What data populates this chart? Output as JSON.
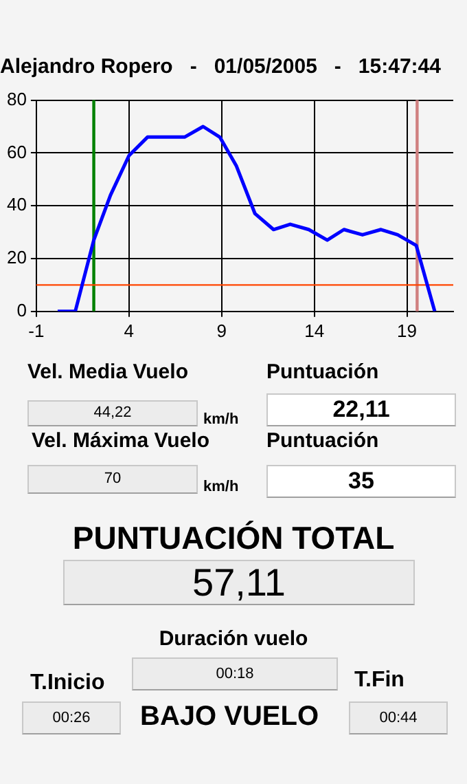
{
  "chart_data": [
    {
      "type": "line",
      "title": "Alejandro Ropero   -   01/05/2005   -   15:47:44",
      "x": [
        0.15,
        1.1,
        2.1,
        3,
        4,
        5,
        6,
        7,
        8,
        8.9,
        9.8,
        10.8,
        11.8,
        12.7,
        13.7,
        14.7,
        15.6,
        16.6,
        17.6,
        18.5,
        19.5,
        20.5
      ],
      "series": [
        {
          "color": "#0000ff",
          "values": [
            0,
            0,
            27,
            44,
            59,
            66,
            66,
            66,
            70,
            66,
            55,
            37,
            31,
            33,
            31,
            27,
            31,
            29,
            31,
            29,
            25,
            0
          ]
        }
      ],
      "xlim": [
        -1,
        21.5
      ],
      "xticks": [
        -1,
        4,
        9,
        14,
        19
      ],
      "ylim": [
        0,
        80
      ],
      "yticks": [
        0,
        20,
        40,
        60,
        80
      ],
      "ref_lines": [
        {
          "axis": "x",
          "value": 2.1,
          "color": "#008000"
        },
        {
          "axis": "x",
          "value": 19.55,
          "color": "#d08080"
        },
        {
          "axis": "y",
          "value": 10,
          "color": "#ff4500"
        }
      ],
      "grid": true,
      "legend": false,
      "marker": "none",
      "line_style": "solid"
    },
    {
      "type": "other",
      "annotations": [
        "Vel. Media Vuelo",
        "44,22",
        "km/h",
        "Puntuación",
        "22,11",
        "Vel. Máxima Vuelo",
        "70",
        "km/h",
        "Puntuación",
        "35",
        "PUNTUACIÓN TOTAL",
        "57,11",
        "Duración vuelo",
        "00:18",
        "T.Inicio",
        "00:26",
        "BAJO VUELO",
        "T.Fin",
        "00:44"
      ]
    }
  ]
}
